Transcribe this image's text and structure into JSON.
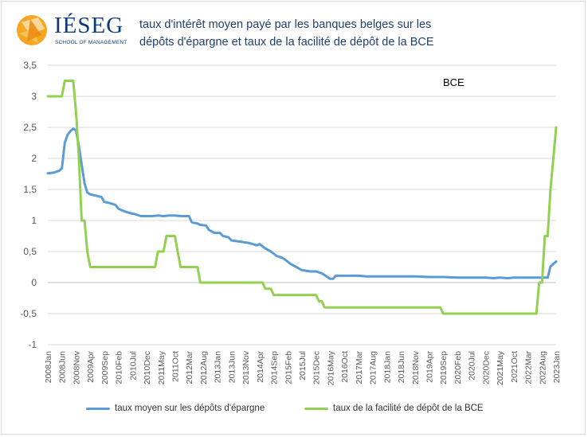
{
  "header": {
    "logo_word": "IÉSEG",
    "logo_tagline": "SCHOOL OF MANAGEMENT",
    "title_line1": "taux d'intérêt moyen payé par les banques belges sur les",
    "title_line2": "dépôts d'épargne et taux de la facilité de dépôt de la BCE"
  },
  "colors": {
    "series_blue": "#5b9bd5",
    "series_green": "#92d050",
    "logo_orange": "#f5a623",
    "logo_blue": "#0a3a78",
    "gridline": "#d9d9d9",
    "axis_text": "#595959"
  },
  "chart_data": {
    "type": "line",
    "title": "taux d'intérêt moyen payé par les banques belges sur les dépôts d'épargne et taux de la facilité de dépôt de la BCE",
    "xlabel": "",
    "ylabel": "",
    "ylim": [
      -1,
      3.5
    ],
    "yticks": [
      -1,
      -0.5,
      0,
      0.5,
      1,
      1.5,
      2,
      2.5,
      3,
      3.5
    ],
    "ytick_labels": [
      "-1",
      "-0,5",
      "0",
      "0,5",
      "1",
      "1,5",
      "2",
      "2,5",
      "3",
      "3,5"
    ],
    "xlim": [
      "2008-01",
      "2023-01"
    ],
    "xtick_labels": [
      "2008Jan",
      "2008Jun",
      "2008Nov",
      "2009Apr",
      "2009Sep",
      "2010Feb",
      "2010Jul",
      "2010Dec",
      "2011May",
      "2011Oct",
      "2012Mar",
      "2012Aug",
      "2013Jan",
      "2013Jun",
      "2013Nov",
      "2014Apr",
      "2014Sep",
      "2015Feb",
      "2015Jul",
      "2015Dec",
      "2016May",
      "2016Oct",
      "2017Mar",
      "2017Aug",
      "2018Jan",
      "2018Jun",
      "2018Nov",
      "2019Apr",
      "2019Sep",
      "2020Feb",
      "2020Jul",
      "2020Dec",
      "2021May",
      "2021Oct",
      "2022Mar",
      "2022Aug",
      "2023Jan"
    ],
    "gridlines": "horizontal",
    "legend_position": "bottom",
    "annotations": [
      "BCE"
    ],
    "series": [
      {
        "name": "taux moyen sur les dépôts d'épargne",
        "color": "#5b9bd5",
        "points": [
          [
            "2008-01",
            1.76
          ],
          [
            "2008-03",
            1.77
          ],
          [
            "2008-05",
            1.8
          ],
          [
            "2008-06",
            1.84
          ],
          [
            "2008-07",
            2.25
          ],
          [
            "2008-08",
            2.38
          ],
          [
            "2008-09",
            2.44
          ],
          [
            "2008-10",
            2.48
          ],
          [
            "2008-11",
            2.45
          ],
          [
            "2008-12",
            2.2
          ],
          [
            "2009-01",
            1.9
          ],
          [
            "2009-02",
            1.6
          ],
          [
            "2009-03",
            1.45
          ],
          [
            "2009-04",
            1.42
          ],
          [
            "2009-06",
            1.4
          ],
          [
            "2009-08",
            1.38
          ],
          [
            "2009-09",
            1.3
          ],
          [
            "2009-11",
            1.28
          ],
          [
            "2010-01",
            1.25
          ],
          [
            "2010-02",
            1.19
          ],
          [
            "2010-04",
            1.15
          ],
          [
            "2010-06",
            1.12
          ],
          [
            "2010-08",
            1.1
          ],
          [
            "2010-10",
            1.07
          ],
          [
            "2010-12",
            1.07
          ],
          [
            "2011-02",
            1.07
          ],
          [
            "2011-04",
            1.08
          ],
          [
            "2011-06",
            1.07
          ],
          [
            "2011-08",
            1.08
          ],
          [
            "2011-10",
            1.08
          ],
          [
            "2011-12",
            1.07
          ],
          [
            "2012-03",
            1.07
          ],
          [
            "2012-04",
            0.97
          ],
          [
            "2012-06",
            0.95
          ],
          [
            "2012-07",
            0.93
          ],
          [
            "2012-09",
            0.92
          ],
          [
            "2012-10",
            0.85
          ],
          [
            "2012-12",
            0.8
          ],
          [
            "2013-02",
            0.8
          ],
          [
            "2013-03",
            0.75
          ],
          [
            "2013-05",
            0.73
          ],
          [
            "2013-06",
            0.68
          ],
          [
            "2013-09",
            0.66
          ],
          [
            "2013-12",
            0.64
          ],
          [
            "2014-03",
            0.6
          ],
          [
            "2014-04",
            0.62
          ],
          [
            "2014-06",
            0.55
          ],
          [
            "2014-08",
            0.5
          ],
          [
            "2014-10",
            0.43
          ],
          [
            "2014-12",
            0.4
          ],
          [
            "2015-01",
            0.37
          ],
          [
            "2015-03",
            0.3
          ],
          [
            "2015-05",
            0.25
          ],
          [
            "2015-07",
            0.2
          ],
          [
            "2015-10",
            0.18
          ],
          [
            "2015-12",
            0.18
          ],
          [
            "2016-02",
            0.15
          ],
          [
            "2016-04",
            0.09
          ],
          [
            "2016-05",
            0.06
          ],
          [
            "2016-06",
            0.06
          ],
          [
            "2016-07",
            0.11
          ],
          [
            "2016-10",
            0.11
          ],
          [
            "2017-03",
            0.11
          ],
          [
            "2017-06",
            0.1
          ],
          [
            "2018-01",
            0.1
          ],
          [
            "2018-11",
            0.1
          ],
          [
            "2019-04",
            0.09
          ],
          [
            "2019-09",
            0.09
          ],
          [
            "2020-02",
            0.08
          ],
          [
            "2020-07",
            0.08
          ],
          [
            "2020-12",
            0.08
          ],
          [
            "2021-03",
            0.07
          ],
          [
            "2021-05",
            0.08
          ],
          [
            "2021-08",
            0.07
          ],
          [
            "2021-10",
            0.08
          ],
          [
            "2022-03",
            0.08
          ],
          [
            "2022-06",
            0.08
          ],
          [
            "2022-08",
            0.08
          ],
          [
            "2022-10",
            0.08
          ],
          [
            "2022-11",
            0.26
          ],
          [
            "2023-01",
            0.34
          ]
        ]
      },
      {
        "name": "taux de la facilité de dépôt de la BCE",
        "color": "#92d050",
        "points": [
          [
            "2008-01",
            3.0
          ],
          [
            "2008-06",
            3.0
          ],
          [
            "2008-07",
            3.25
          ],
          [
            "2008-10",
            3.25
          ],
          [
            "2008-11",
            2.75
          ],
          [
            "2008-12",
            2.0
          ],
          [
            "2009-01",
            1.0
          ],
          [
            "2009-02",
            1.0
          ],
          [
            "2009-03",
            0.5
          ],
          [
            "2009-04",
            0.25
          ],
          [
            "2009-08",
            0.25
          ],
          [
            "2010-06",
            0.25
          ],
          [
            "2011-03",
            0.25
          ],
          [
            "2011-04",
            0.5
          ],
          [
            "2011-06",
            0.5
          ],
          [
            "2011-07",
            0.75
          ],
          [
            "2011-10",
            0.75
          ],
          [
            "2011-11",
            0.5
          ],
          [
            "2011-12",
            0.25
          ],
          [
            "2012-06",
            0.25
          ],
          [
            "2012-07",
            0.0
          ],
          [
            "2013-06",
            0.0
          ],
          [
            "2014-05",
            0.0
          ],
          [
            "2014-06",
            -0.1
          ],
          [
            "2014-08",
            -0.1
          ],
          [
            "2014-09",
            -0.2
          ],
          [
            "2015-12",
            -0.2
          ],
          [
            "2016-01",
            -0.3
          ],
          [
            "2016-02",
            -0.3
          ],
          [
            "2016-03",
            -0.4
          ],
          [
            "2017-06",
            -0.4
          ],
          [
            "2019-08",
            -0.4
          ],
          [
            "2019-09",
            -0.5
          ],
          [
            "2020-12",
            -0.5
          ],
          [
            "2022-06",
            -0.5
          ],
          [
            "2022-07",
            0.0
          ],
          [
            "2022-08",
            0.0
          ],
          [
            "2022-09",
            0.75
          ],
          [
            "2022-10",
            0.75
          ],
          [
            "2022-11",
            1.5
          ],
          [
            "2022-12",
            2.0
          ],
          [
            "2023-01",
            2.5
          ]
        ]
      }
    ]
  }
}
